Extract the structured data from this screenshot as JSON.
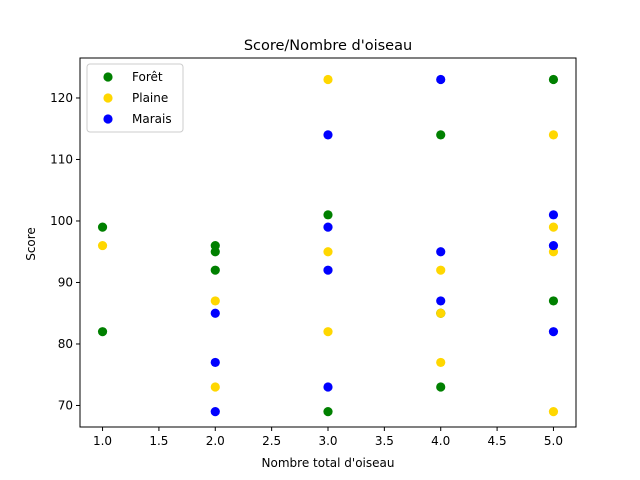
{
  "chart_data": {
    "type": "scatter",
    "title": "Score/Nombre d'oiseau",
    "xlabel": "Nombre total d'oiseau",
    "ylabel": "Score",
    "xlim": [
      0.8,
      5.2
    ],
    "ylim": [
      66.5,
      126.5
    ],
    "xticks": [
      1.0,
      1.5,
      2.0,
      2.5,
      3.0,
      3.5,
      4.0,
      4.5,
      5.0
    ],
    "xtick_labels": [
      "1.0",
      "1.5",
      "2.0",
      "2.5",
      "3.0",
      "3.5",
      "4.0",
      "4.5",
      "5.0"
    ],
    "yticks": [
      70,
      80,
      90,
      100,
      110,
      120
    ],
    "ytick_labels": [
      "70",
      "80",
      "90",
      "100",
      "110",
      "120"
    ],
    "grid": false,
    "legend_position": "top-left",
    "series": [
      {
        "name": "Forêt",
        "color": "#008000",
        "x": [
          1,
          1,
          2,
          2,
          2,
          3,
          3,
          4,
          4,
          4,
          5,
          5
        ],
        "y": [
          99,
          82,
          96,
          95,
          92,
          101,
          69,
          114,
          85,
          73,
          123,
          87
        ]
      },
      {
        "name": "Plaine",
        "color": "#FFD700",
        "x": [
          1,
          2,
          2,
          3,
          3,
          3,
          4,
          4,
          4,
          5,
          5,
          5,
          5
        ],
        "y": [
          96,
          87,
          73,
          123,
          95,
          82,
          92,
          85,
          77,
          114,
          99,
          95,
          69
        ]
      },
      {
        "name": "Marais",
        "color": "#0000FF",
        "x": [
          2,
          2,
          2,
          3,
          3,
          3,
          3,
          4,
          4,
          4,
          5,
          5,
          5
        ],
        "y": [
          85,
          77,
          69,
          114,
          99,
          92,
          73,
          123,
          95,
          87,
          101,
          96,
          82
        ]
      }
    ]
  }
}
